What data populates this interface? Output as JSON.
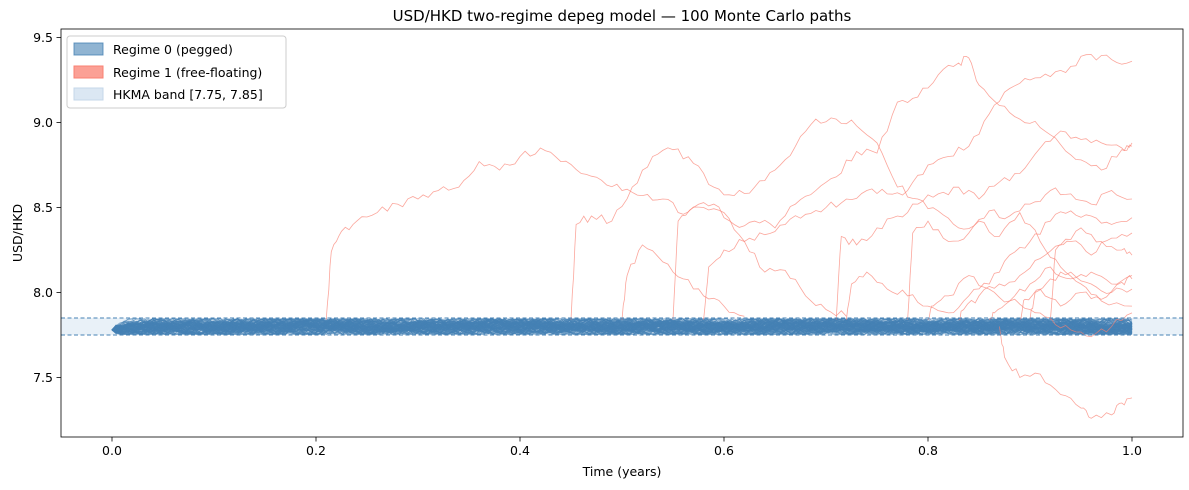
{
  "chart_data": {
    "type": "line",
    "title": "USD/HKD two-regime depeg model — 100 Monte Carlo paths",
    "xlabel": "Time (years)",
    "ylabel": "USD/HKD",
    "xlim": [
      -0.05,
      1.05
    ],
    "ylim": [
      7.15,
      9.55
    ],
    "x_ticks": [
      0.0,
      0.2,
      0.4,
      0.6,
      0.8,
      1.0
    ],
    "x_tick_labels": [
      "0.0",
      "0.2",
      "0.4",
      "0.6",
      "0.8",
      "1.0"
    ],
    "y_ticks": [
      7.5,
      8.0,
      8.5,
      9.0,
      9.5
    ],
    "y_tick_labels": [
      "7.5",
      "8.0",
      "8.5",
      "9.0",
      "9.5"
    ],
    "grid": false,
    "legend_position": "top-left",
    "legend": [
      {
        "label": "Regime 0 (pegged)",
        "color": "#4682b4"
      },
      {
        "label": "Regime 1 (free-floating)",
        "color": "#fa8072"
      },
      {
        "label": "HKMA band [7.75, 7.85]",
        "color": "#dbe7f3"
      }
    ],
    "band": {
      "lower": 7.75,
      "upper": 7.85,
      "color": "#4682b4"
    },
    "path_count": 100,
    "start_value": 7.78,
    "regime0_color": "#4682b4",
    "regime1_color": "#fa8072",
    "depeg_paths": [
      {
        "points": [
          [
            0.21,
            7.84
          ],
          [
            0.215,
            8.24
          ],
          [
            0.225,
            8.36
          ],
          [
            0.24,
            8.42
          ],
          [
            0.26,
            8.47
          ],
          [
            0.28,
            8.52
          ],
          [
            0.3,
            8.55
          ],
          [
            0.32,
            8.6
          ],
          [
            0.34,
            8.62
          ],
          [
            0.36,
            8.77
          ],
          [
            0.38,
            8.72
          ],
          [
            0.4,
            8.8
          ],
          [
            0.42,
            8.85
          ],
          [
            0.44,
            8.77
          ],
          [
            0.46,
            8.7
          ],
          [
            0.48,
            8.66
          ],
          [
            0.5,
            8.6
          ],
          [
            0.52,
            8.57
          ],
          [
            0.54,
            8.55
          ],
          [
            0.56,
            8.46
          ],
          [
            0.58,
            8.5
          ],
          [
            0.6,
            8.47
          ],
          [
            0.62,
            8.3
          ],
          [
            0.64,
            8.12
          ],
          [
            0.66,
            8.13
          ],
          [
            0.68,
            7.98
          ],
          [
            0.7,
            7.9
          ],
          [
            0.72,
            7.86
          ]
        ]
      },
      {
        "points": [
          [
            0.45,
            7.84
          ],
          [
            0.455,
            8.4
          ],
          [
            0.47,
            8.45
          ],
          [
            0.49,
            8.42
          ],
          [
            0.51,
            8.62
          ],
          [
            0.53,
            8.8
          ],
          [
            0.55,
            8.84
          ],
          [
            0.57,
            8.76
          ],
          [
            0.59,
            8.62
          ],
          [
            0.61,
            8.57
          ],
          [
            0.63,
            8.62
          ],
          [
            0.65,
            8.72
          ],
          [
            0.67,
            8.86
          ],
          [
            0.69,
            9.02
          ],
          [
            0.71,
            9.02
          ],
          [
            0.73,
            8.98
          ],
          [
            0.75,
            8.88
          ],
          [
            0.77,
            8.62
          ],
          [
            0.79,
            8.55
          ],
          [
            0.81,
            8.48
          ],
          [
            0.83,
            8.38
          ],
          [
            0.85,
            8.42
          ],
          [
            0.87,
            8.33
          ],
          [
            0.89,
            8.47
          ],
          [
            0.91,
            8.3
          ],
          [
            0.93,
            8.15
          ],
          [
            0.95,
            8.05
          ],
          [
            0.97,
            7.95
          ],
          [
            1.0,
            7.92
          ]
        ]
      },
      {
        "points": [
          [
            0.5,
            7.84
          ],
          [
            0.505,
            8.1
          ],
          [
            0.52,
            8.28
          ],
          [
            0.54,
            8.18
          ],
          [
            0.56,
            8.08
          ],
          [
            0.58,
            7.98
          ],
          [
            0.6,
            7.92
          ],
          [
            0.62,
            7.86
          ]
        ]
      },
      {
        "points": [
          [
            0.55,
            7.84
          ],
          [
            0.555,
            8.42
          ],
          [
            0.57,
            8.5
          ],
          [
            0.59,
            8.52
          ],
          [
            0.61,
            8.4
          ],
          [
            0.63,
            8.42
          ],
          [
            0.65,
            8.38
          ],
          [
            0.67,
            8.52
          ],
          [
            0.69,
            8.6
          ],
          [
            0.71,
            8.68
          ],
          [
            0.73,
            8.83
          ],
          [
            0.75,
            8.82
          ],
          [
            0.77,
            9.12
          ],
          [
            0.79,
            9.15
          ],
          [
            0.81,
            9.28
          ],
          [
            0.83,
            9.35
          ],
          [
            0.84,
            9.38
          ],
          [
            0.85,
            9.22
          ],
          [
            0.87,
            9.1
          ],
          [
            0.89,
            9.02
          ],
          [
            0.91,
            8.97
          ],
          [
            0.93,
            8.87
          ],
          [
            0.95,
            8.78
          ],
          [
            0.97,
            8.72
          ],
          [
            0.99,
            8.84
          ],
          [
            1.0,
            8.88
          ]
        ]
      },
      {
        "points": [
          [
            0.58,
            7.84
          ],
          [
            0.585,
            8.15
          ],
          [
            0.6,
            8.25
          ],
          [
            0.62,
            8.3
          ],
          [
            0.64,
            8.34
          ],
          [
            0.66,
            8.4
          ],
          [
            0.68,
            8.46
          ],
          [
            0.7,
            8.5
          ],
          [
            0.72,
            8.55
          ],
          [
            0.74,
            8.6
          ],
          [
            0.76,
            8.58
          ],
          [
            0.78,
            8.6
          ],
          [
            0.8,
            8.75
          ],
          [
            0.82,
            8.8
          ],
          [
            0.84,
            8.86
          ],
          [
            0.86,
            9.05
          ],
          [
            0.88,
            9.2
          ],
          [
            0.9,
            9.25
          ],
          [
            0.92,
            9.27
          ],
          [
            0.94,
            9.33
          ],
          [
            0.96,
            9.4
          ],
          [
            0.98,
            9.37
          ],
          [
            1.0,
            9.36
          ]
        ]
      },
      {
        "points": [
          [
            0.71,
            7.84
          ],
          [
            0.715,
            8.33
          ],
          [
            0.73,
            8.28
          ],
          [
            0.75,
            8.38
          ],
          [
            0.77,
            8.45
          ],
          [
            0.79,
            8.52
          ],
          [
            0.81,
            8.58
          ],
          [
            0.83,
            8.62
          ],
          [
            0.85,
            8.55
          ],
          [
            0.87,
            8.65
          ],
          [
            0.89,
            8.7
          ],
          [
            0.91,
            8.85
          ],
          [
            0.93,
            8.95
          ],
          [
            0.95,
            8.9
          ],
          [
            0.97,
            8.88
          ],
          [
            0.99,
            8.85
          ],
          [
            1.0,
            8.86
          ]
        ]
      },
      {
        "points": [
          [
            0.78,
            7.84
          ],
          [
            0.785,
            8.35
          ],
          [
            0.8,
            8.42
          ],
          [
            0.82,
            8.3
          ],
          [
            0.84,
            8.35
          ],
          [
            0.86,
            8.48
          ],
          [
            0.88,
            8.45
          ],
          [
            0.9,
            8.52
          ],
          [
            0.92,
            8.6
          ],
          [
            0.94,
            8.58
          ],
          [
            0.96,
            8.52
          ],
          [
            0.98,
            8.6
          ],
          [
            1.0,
            8.55
          ]
        ]
      },
      {
        "points": [
          [
            0.72,
            7.84
          ],
          [
            0.725,
            8.05
          ],
          [
            0.74,
            8.12
          ],
          [
            0.76,
            8.02
          ],
          [
            0.78,
            7.98
          ],
          [
            0.8,
            7.92
          ],
          [
            0.82,
            7.88
          ],
          [
            0.84,
            7.98
          ],
          [
            0.86,
            8.05
          ],
          [
            0.88,
            8.22
          ],
          [
            0.9,
            8.3
          ],
          [
            0.92,
            8.42
          ],
          [
            0.94,
            8.48
          ],
          [
            0.96,
            8.45
          ],
          [
            0.98,
            8.4
          ],
          [
            1.0,
            8.44
          ]
        ]
      },
      {
        "points": [
          [
            0.87,
            7.8
          ],
          [
            0.875,
            7.62
          ],
          [
            0.89,
            7.5
          ],
          [
            0.91,
            7.52
          ],
          [
            0.93,
            7.4
          ],
          [
            0.95,
            7.32
          ],
          [
            0.96,
            7.26
          ],
          [
            0.98,
            7.28
          ],
          [
            0.99,
            7.35
          ],
          [
            1.0,
            7.38
          ]
        ]
      },
      {
        "points": [
          [
            0.83,
            7.84
          ],
          [
            0.835,
            7.9
          ],
          [
            0.85,
            7.98
          ],
          [
            0.87,
            8.05
          ],
          [
            0.89,
            8.1
          ],
          [
            0.91,
            8.2
          ],
          [
            0.93,
            8.28
          ],
          [
            0.95,
            8.38
          ],
          [
            0.97,
            8.3
          ],
          [
            0.99,
            8.25
          ],
          [
            1.0,
            8.22
          ]
        ]
      },
      {
        "points": [
          [
            0.8,
            7.84
          ],
          [
            0.805,
            7.92
          ],
          [
            0.82,
            7.98
          ],
          [
            0.84,
            8.1
          ],
          [
            0.86,
            8.02
          ],
          [
            0.88,
            7.95
          ],
          [
            0.9,
            8.05
          ],
          [
            0.92,
            8.15
          ],
          [
            0.94,
            8.08
          ],
          [
            0.96,
            8.12
          ],
          [
            0.98,
            8.05
          ],
          [
            1.0,
            8.1
          ]
        ]
      },
      {
        "points": [
          [
            0.92,
            7.84
          ],
          [
            0.925,
            8.25
          ],
          [
            0.94,
            8.3
          ],
          [
            0.96,
            8.22
          ],
          [
            0.98,
            8.32
          ],
          [
            1.0,
            8.35
          ]
        ]
      },
      {
        "points": [
          [
            0.89,
            7.84
          ],
          [
            0.895,
            7.96
          ],
          [
            0.91,
            8.02
          ],
          [
            0.93,
            7.92
          ],
          [
            0.95,
            8.0
          ],
          [
            0.97,
            7.96
          ],
          [
            0.99,
            8.06
          ],
          [
            1.0,
            8.08
          ]
        ]
      },
      {
        "points": [
          [
            0.86,
            7.84
          ],
          [
            0.865,
            7.88
          ],
          [
            0.88,
            7.95
          ],
          [
            0.9,
            7.9
          ],
          [
            0.92,
            7.85
          ],
          [
            0.94,
            7.78
          ],
          [
            0.96,
            7.74
          ],
          [
            0.98,
            7.8
          ],
          [
            1.0,
            7.88
          ]
        ]
      },
      {
        "points": [
          [
            0.9,
            7.84
          ],
          [
            0.905,
            8.0
          ],
          [
            0.92,
            8.08
          ],
          [
            0.94,
            8.12
          ],
          [
            0.96,
            8.05
          ],
          [
            0.98,
            8.0
          ],
          [
            1.0,
            8.02
          ]
        ]
      }
    ]
  }
}
